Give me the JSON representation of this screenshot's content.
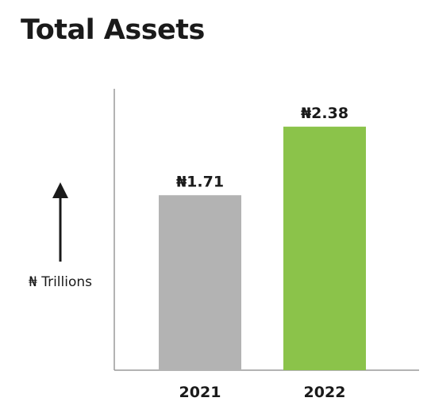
{
  "chart_data": {
    "type": "bar",
    "title": "Total Assets",
    "categories": [
      "2021",
      "2022"
    ],
    "values": [
      1.71,
      2.38
    ],
    "data_labels": [
      "₦1.71",
      "₦2.38"
    ],
    "ylabel": "₦ Trillions",
    "ylim": [
      0,
      2.75
    ],
    "colors": [
      "#b3b3b3",
      "#8bc34a"
    ],
    "grid": false,
    "legend": "none"
  }
}
